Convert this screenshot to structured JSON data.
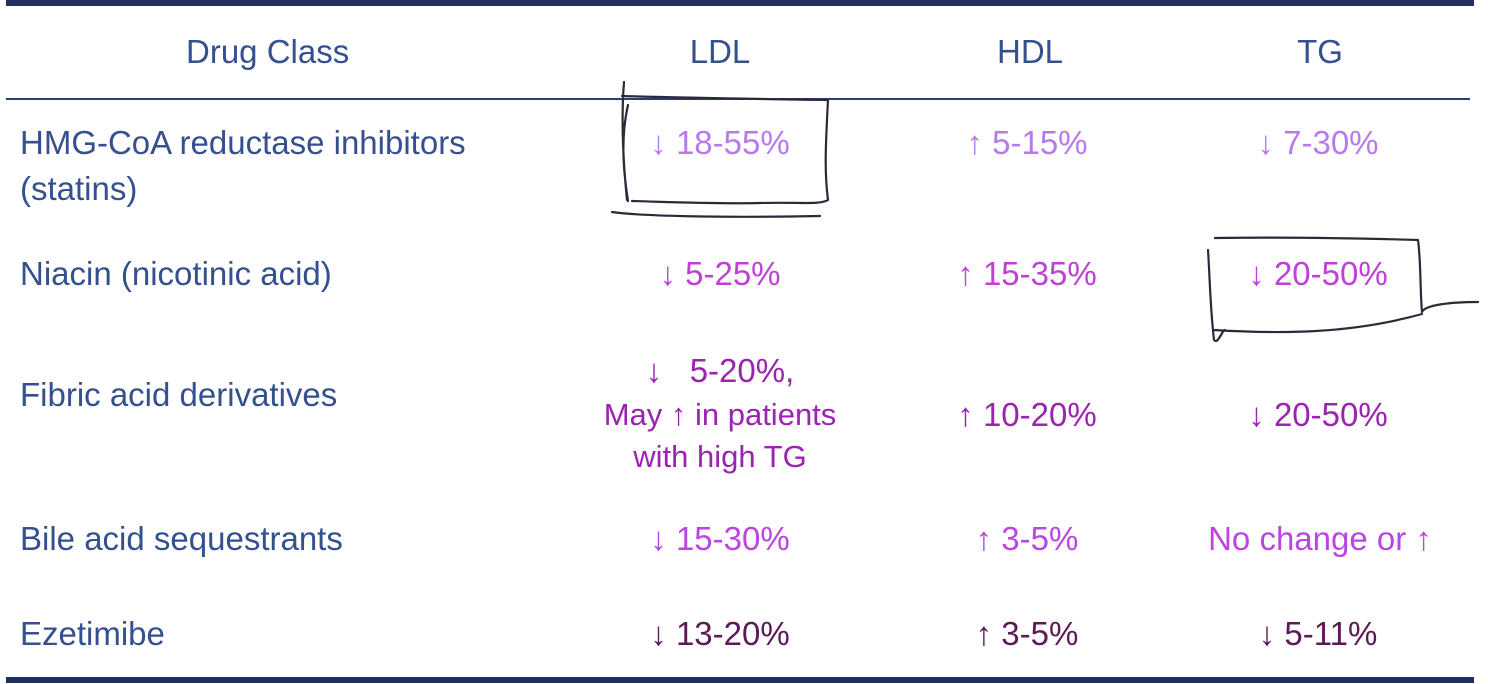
{
  "table": {
    "headers": {
      "drug_class": "Drug Class",
      "ldl": "LDL",
      "hdl": "HDL",
      "tg": "TG"
    },
    "rows": [
      {
        "drug_line1": "HMG-CoA reductase inhibitors",
        "drug_line2": "(statins)",
        "ldl": "↓ 18-55%",
        "hdl": "↑ 5-15%",
        "tg": "↓ 7-30%"
      },
      {
        "drug": "Niacin (nicotinic acid)",
        "ldl": "↓ 5-25%",
        "hdl": "↑ 15-35%",
        "tg": "↓ 20-50%"
      },
      {
        "drug": "Fibric acid derivatives",
        "ldl_line1": "↓   5-20%,",
        "ldl_line2": "May ↑ in patients",
        "ldl_line3": "with high TG",
        "hdl": "↑ 10-20%",
        "tg": "↓ 20-50%"
      },
      {
        "drug": "Bile acid sequestrants",
        "ldl": "↓ 15-30%",
        "hdl": "↑ 3-5%",
        "tg": "No change or ↑"
      },
      {
        "drug": "Ezetimibe",
        "ldl": "↓ 13-20%",
        "hdl": "↑ 3-5%",
        "tg": "↓ 5-11%"
      }
    ]
  },
  "colors": {
    "header_text": "#34508f",
    "rule": "#1f2f5e",
    "statins": "#b879ee",
    "niacin": "#bf40d6",
    "fibric": "#9a23b0",
    "bile": "#ba45e2",
    "ezetimibe": "#5c1a57",
    "annotation_ink": "#2a2a3a"
  }
}
